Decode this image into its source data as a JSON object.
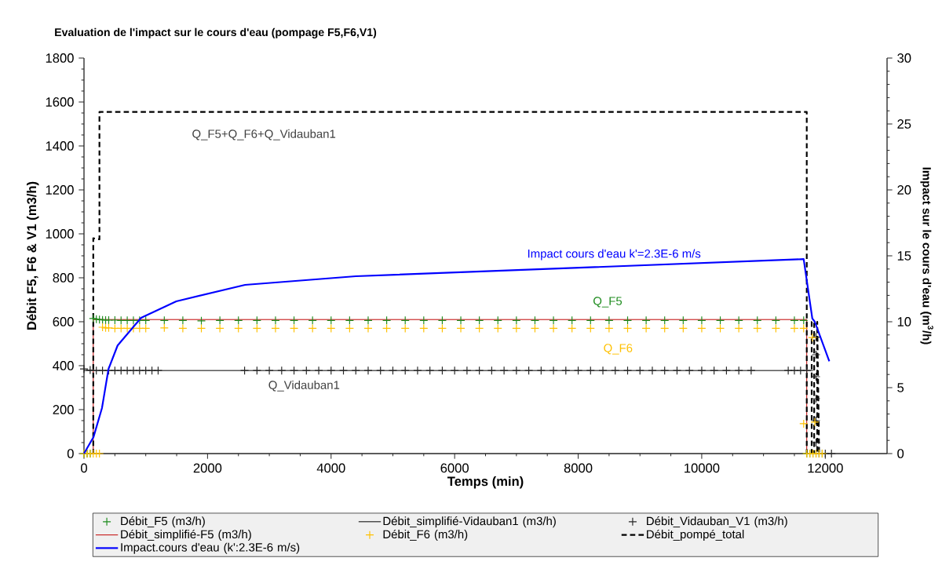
{
  "chart_data": {
    "type": "line",
    "title": "Evaluation de l'impact sur le cours d'eau (pompage F5,F6,V1)",
    "xlabel": "Temps (min)",
    "ylabel": "Débit F5, F6 & V1 (m3/h)",
    "y2label": "Impact sur le cours d'eau (m$^{3}$/h)",
    "xlim": [
      0,
      13000
    ],
    "xticks": [
      0,
      2000,
      4000,
      6000,
      8000,
      10000,
      12000
    ],
    "ylim": [
      0,
      1800
    ],
    "yticks": [
      0,
      200,
      400,
      600,
      800,
      1000,
      1200,
      1400,
      1600,
      1800
    ],
    "y2lim": [
      0,
      30
    ],
    "y2ticks": [
      0,
      5,
      10,
      15,
      20,
      25,
      30
    ],
    "legend": "bottom",
    "annotations": [
      "Q_F5+Q_F6+Q_Vidauban1",
      "Impact cours d'eau k'=2.3E-6 m/s",
      "Q_F5",
      "Q_F6",
      "Q_Vidauban1"
    ],
    "series": [
      {
        "name": "Débit_F5 (m3/h)",
        "type": "scatter",
        "marker": "cross",
        "color": "#1e8c1e",
        "x": [
          0,
          50,
          100,
          150,
          200,
          250,
          300,
          350,
          400,
          500,
          600,
          700,
          800,
          900,
          1000,
          1300,
          1600,
          1900,
          2200,
          2500,
          2800,
          3100,
          3400,
          3700,
          4000,
          4300,
          4600,
          4900,
          5200,
          5500,
          5800,
          6100,
          6400,
          6700,
          7000,
          7300,
          7600,
          7900,
          8200,
          8500,
          8800,
          9100,
          9400,
          9700,
          10000,
          10300,
          10600,
          10900,
          11200,
          11500,
          11650,
          11700,
          11750,
          11800,
          11850,
          11900,
          11950
        ],
        "values": [
          0,
          0,
          0,
          615,
          612,
          610,
          608,
          607,
          607,
          607,
          606,
          606,
          606,
          606,
          606,
          606,
          606,
          604,
          606,
          606,
          606,
          606,
          606,
          606,
          606,
          606,
          606,
          606,
          606,
          606,
          606,
          606,
          606,
          606,
          606,
          606,
          606,
          606,
          606,
          606,
          606,
          606,
          606,
          606,
          606,
          606,
          606,
          606,
          606,
          606,
          606,
          0,
          0,
          0,
          0,
          0,
          0
        ]
      },
      {
        "name": "Débit_simplifié-Vidauban1 (m3/h)",
        "line_style": "solid",
        "color": "#000000",
        "x": [
          0,
          11800
        ],
        "values": [
          378,
          378
        ]
      },
      {
        "name": "Débit_Vidauban_V1 (m3/h)",
        "type": "scatter",
        "marker": "cross",
        "color": "#262626",
        "x": [
          0,
          100,
          200,
          300,
          400,
          500,
          600,
          700,
          800,
          900,
          1000,
          1100,
          1200,
          2600,
          2800,
          3000,
          3200,
          3400,
          3600,
          3800,
          4000,
          4200,
          4400,
          4600,
          4800,
          5000,
          5200,
          5400,
          5600,
          5800,
          6000,
          6200,
          6400,
          6600,
          6800,
          7000,
          7200,
          7400,
          7600,
          7800,
          8000,
          8200,
          8400,
          8600,
          8800,
          9000,
          9200,
          9400,
          9600,
          9800,
          10000,
          10200,
          10400,
          10600,
          10800,
          11400,
          11500,
          11600,
          11700,
          11850,
          11850,
          11850,
          11850,
          11850,
          11850,
          11900,
          12000,
          12100
        ],
        "values": [
          385,
          380,
          378,
          378,
          378,
          378,
          378,
          378,
          378,
          378,
          378,
          378,
          378,
          378,
          378,
          378,
          378,
          378,
          378,
          378,
          378,
          378,
          378,
          378,
          378,
          378,
          378,
          378,
          378,
          378,
          378,
          378,
          378,
          378,
          378,
          378,
          378,
          378,
          378,
          378,
          378,
          378,
          378,
          378,
          378,
          378,
          378,
          378,
          378,
          378,
          378,
          378,
          378,
          378,
          378,
          378,
          378,
          378,
          378,
          50,
          150,
          250,
          350,
          450,
          530,
          0,
          0,
          0
        ]
      },
      {
        "name": "Débit_simplifié-F5 (m3/h)",
        "line_style": "solid",
        "color": "#c00000",
        "x": [
          0,
          150,
          150,
          11700,
          11700,
          12000
        ],
        "values": [
          0,
          0,
          610,
          610,
          0,
          0
        ]
      },
      {
        "name": "Débit_F6 (m3/h)",
        "type": "scatter",
        "marker": "cross",
        "color": "#ffc000",
        "x": [
          0,
          50,
          100,
          150,
          200,
          250,
          300,
          350,
          400,
          500,
          600,
          700,
          800,
          900,
          1000,
          1300,
          1600,
          1900,
          2200,
          2500,
          2800,
          3100,
          3400,
          3700,
          4000,
          4300,
          4600,
          4900,
          5200,
          5500,
          5800,
          6100,
          6400,
          6700,
          7000,
          7300,
          7600,
          7900,
          8200,
          8500,
          8800,
          9100,
          9400,
          9700,
          10000,
          10300,
          10600,
          10900,
          11200,
          11500,
          11650,
          11650,
          11790,
          11830,
          11700,
          11750,
          11800,
          11850,
          11900,
          11950
        ],
        "values": [
          0,
          0,
          0,
          0,
          0,
          0,
          575,
          572,
          572,
          570,
          570,
          570,
          570,
          570,
          570,
          572,
          570,
          570,
          570,
          570,
          570,
          570,
          570,
          570,
          570,
          570,
          570,
          570,
          570,
          570,
          570,
          570,
          570,
          570,
          570,
          570,
          570,
          570,
          570,
          570,
          570,
          570,
          570,
          570,
          570,
          570,
          570,
          570,
          570,
          570,
          570,
          136,
          528,
          143,
          0,
          0,
          0,
          0,
          0,
          0
        ]
      },
      {
        "name": "Débit_pompé_total",
        "line_style": "dashed",
        "color": "#000000",
        "x": [
          0,
          150,
          150,
          250,
          250,
          11700,
          11700,
          11780,
          11780,
          11820,
          11820,
          11870,
          11870,
          11900,
          12000
        ],
        "values": [
          0,
          0,
          980,
          975,
          1555,
          1555,
          0,
          0,
          600,
          600,
          0,
          0,
          600,
          0,
          0
        ]
      },
      {
        "name": "Impact.cours d'eau (k':2.3E-6 m/s)",
        "line_style": "solid",
        "axis": "y2",
        "color": "#0000ff",
        "x": [
          0,
          155,
          291,
          396,
          544,
          924,
          1494,
          2608,
          4400,
          11650,
          11790,
          11830,
          12065
        ],
        "values": [
          0,
          1.27,
          3.45,
          6.4,
          8.2,
          10.3,
          11.55,
          12.8,
          13.45,
          14.75,
          10.25,
          10.0,
          7.0
        ]
      }
    ]
  }
}
